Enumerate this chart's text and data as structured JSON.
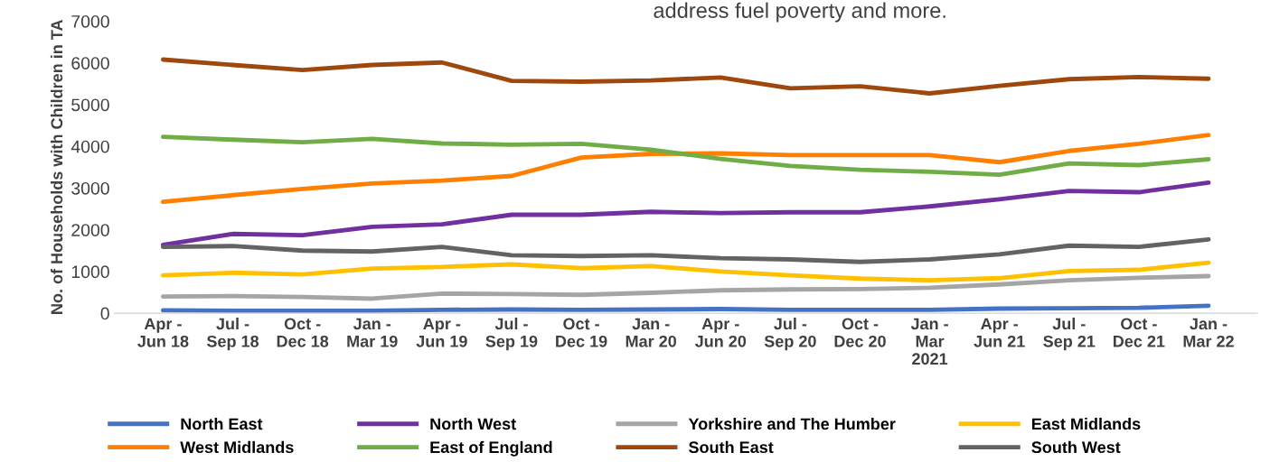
{
  "chart_data": {
    "type": "line",
    "ylabel": "No. of Households with Children in TA",
    "annotations": [
      "address fuel poverty and more."
    ],
    "categories": [
      "Apr -\nJun 18",
      "Jul -\nSep 18",
      "Oct -\nDec 18",
      "Jan -\nMar 19",
      "Apr -\nJun 19",
      "Jul -\nSep 19",
      "Oct -\nDec 19",
      "Jan -\nMar 20",
      "Apr -\nJun 20",
      "Jul -\nSep 20",
      "Oct -\nDec 20",
      "Jan -\nMar\n2021",
      "Apr -\nJun 21",
      "Jul -\nSep 21",
      "Oct -\nDec 21",
      "Jan -\nMar 22"
    ],
    "ylim": [
      0,
      7000
    ],
    "yticks": [
      0,
      1000,
      2000,
      3000,
      4000,
      5000,
      6000,
      7000
    ],
    "grid": false,
    "legend": "bottom",
    "marker": "none",
    "line_style": "solid",
    "series": [
      {
        "name": "North East",
        "color": "#4472c4",
        "values": [
          70,
          60,
          60,
          60,
          80,
          90,
          80,
          90,
          100,
          80,
          80,
          80,
          110,
          120,
          130,
          180
        ]
      },
      {
        "name": "North West",
        "color": "#7030a0",
        "values": [
          1640,
          1900,
          1870,
          2070,
          2130,
          2360,
          2360,
          2430,
          2400,
          2420,
          2420,
          2560,
          2730,
          2930,
          2900,
          3130
        ]
      },
      {
        "name": "Yorkshire and The Humber",
        "color": "#a5a5a5",
        "values": [
          400,
          410,
          390,
          350,
          470,
          460,
          440,
          490,
          550,
          570,
          580,
          610,
          690,
          790,
          850,
          890
        ]
      },
      {
        "name": "East Midlands",
        "color": "#ffc000",
        "values": [
          910,
          970,
          930,
          1070,
          1110,
          1170,
          1080,
          1130,
          1000,
          910,
          830,
          790,
          840,
          1010,
          1040,
          1210
        ]
      },
      {
        "name": "West Midlands",
        "color": "#ff7f00",
        "values": [
          2670,
          2830,
          2980,
          3110,
          3180,
          3290,
          3730,
          3820,
          3830,
          3790,
          3790,
          3790,
          3620,
          3890,
          4060,
          4270
        ]
      },
      {
        "name": "East of England",
        "color": "#70ad47",
        "values": [
          4230,
          4160,
          4100,
          4180,
          4070,
          4040,
          4060,
          3920,
          3700,
          3530,
          3440,
          3390,
          3320,
          3590,
          3550,
          3690
        ]
      },
      {
        "name": "South East",
        "color": "#9e480e",
        "values": [
          6080,
          5950,
          5830,
          5950,
          6010,
          5570,
          5550,
          5580,
          5650,
          5390,
          5440,
          5270,
          5450,
          5610,
          5660,
          5620
        ]
      },
      {
        "name": "South West",
        "color": "#636363",
        "values": [
          1590,
          1610,
          1500,
          1480,
          1590,
          1390,
          1370,
          1390,
          1320,
          1290,
          1230,
          1290,
          1410,
          1620,
          1590,
          1770
        ]
      }
    ]
  }
}
